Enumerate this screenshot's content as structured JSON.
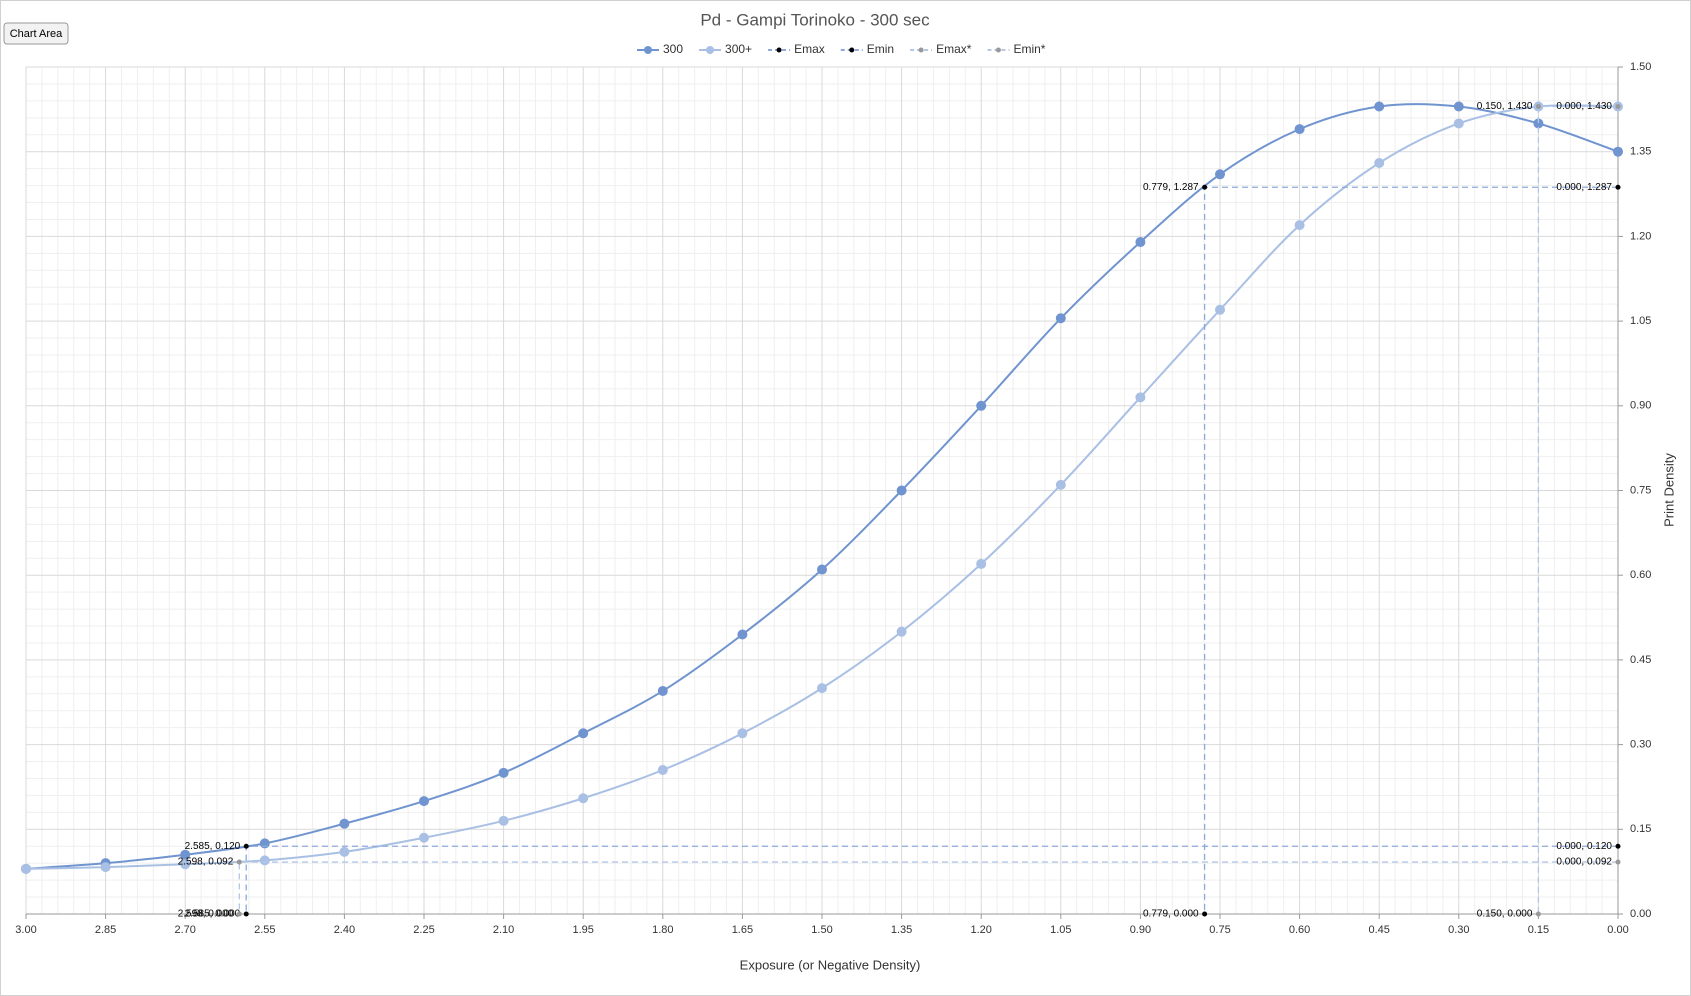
{
  "tooltip": "Chart Area",
  "chart_data": {
    "type": "line",
    "title": "Pd - Gampi Torinoko - 300 sec",
    "x_label": "Exposure (or Negative Density)",
    "y_label": "Print Density",
    "xlim": [
      3,
      0
    ],
    "ylim": [
      0,
      1.5
    ],
    "xticks": [
      {
        "value": 3,
        "label": "3.00"
      },
      2.85,
      {
        "value": 2.7,
        "label": "2.70"
      },
      2.55,
      {
        "value": 2.4,
        "label": "2.40"
      },
      2.25,
      {
        "value": 2.1,
        "label": "2.10"
      },
      1.95,
      {
        "value": 1.8,
        "label": "1.80"
      },
      1.65,
      {
        "value": 1.5,
        "label": "1.50"
      },
      1.35,
      {
        "value": 1.2,
        "label": "1.20"
      },
      1.05,
      {
        "value": 0.9,
        "label": "0.90"
      },
      0.75,
      {
        "value": 0.6,
        "label": "0.60"
      },
      0.45,
      {
        "value": 0.3,
        "label": "0.30"
      },
      0.15,
      {
        "value": 0,
        "label": "0.00"
      }
    ],
    "yticks": [
      {
        "value": 0,
        "label": "0.00"
      },
      0.15,
      {
        "value": 0.3,
        "label": "0.30"
      },
      0.45,
      {
        "value": 0.6,
        "label": "0.60"
      },
      0.75,
      {
        "value": 0.9,
        "label": "0.90"
      },
      1.05,
      {
        "value": 1.2,
        "label": "1.20"
      },
      1.35,
      {
        "value": 1.5,
        "label": "1.50"
      }
    ],
    "grid": true,
    "minor_grid": true,
    "legend": "top",
    "series": [
      {
        "name": "300",
        "color": "#7094cf",
        "smooth": true,
        "dashed": false,
        "marker_color": "#7094cf",
        "x": [
          3,
          2.85,
          2.7,
          2.55,
          2.4,
          2.25,
          2.1,
          1.95,
          1.8,
          1.65,
          1.5,
          1.35,
          1.2,
          1.05,
          0.9,
          0.75,
          0.6,
          0.45,
          0.3,
          0.15,
          0
        ],
        "values": [
          0.08,
          0.09,
          0.105,
          0.125,
          0.16,
          0.2,
          0.25,
          0.32,
          0.395,
          0.495,
          0.61,
          0.75,
          0.9,
          1.055,
          1.19,
          1.31,
          1.39,
          1.43,
          1.43,
          1.4,
          1.35
        ]
      },
      {
        "name": "300+",
        "color": "#a9c0e4",
        "smooth": true,
        "dashed": false,
        "marker_color": "#a9c0e4",
        "x": [
          3,
          2.85,
          2.7,
          2.55,
          2.4,
          2.25,
          2.1,
          1.95,
          1.8,
          1.65,
          1.5,
          1.35,
          1.2,
          1.05,
          0.9,
          0.75,
          0.6,
          0.45,
          0.3,
          0.15,
          0
        ],
        "values": [
          0.08,
          0.083,
          0.088,
          0.095,
          0.11,
          0.135,
          0.165,
          0.205,
          0.255,
          0.32,
          0.4,
          0.5,
          0.62,
          0.76,
          0.915,
          1.07,
          1.22,
          1.33,
          1.4,
          1.43,
          1.43
        ]
      },
      {
        "name": "Emax",
        "color": "#8eaadb",
        "smooth": false,
        "dashed": true,
        "marker_color": "#000000",
        "x": [
          0,
          0.779,
          0.779
        ],
        "values": [
          1.287,
          1.287,
          0
        ],
        "value_labels": [
          "0.000, 1.287",
          "0.779, 1.287",
          "0.779, 0.000"
        ]
      },
      {
        "name": "Emin",
        "color": "#8eaadb",
        "smooth": false,
        "dashed": true,
        "marker_color": "#000000",
        "x": [
          0,
          2.585,
          2.585
        ],
        "values": [
          0.12,
          0.12,
          0
        ],
        "value_labels": [
          "0.000, 0.120",
          "2.585, 0.120",
          "2.585, 0.000"
        ]
      },
      {
        "name": "Emax*",
        "color": "#b4c7e7",
        "smooth": false,
        "dashed": true,
        "marker_color": "#999999",
        "x": [
          0,
          0.15,
          0.15
        ],
        "values": [
          1.43,
          1.43,
          0
        ],
        "value_labels": [
          "0.000, 1.430",
          "0.150, 1.430",
          "0.150, 0.000"
        ]
      },
      {
        "name": "Emin*",
        "color": "#b4c7e7",
        "smooth": false,
        "dashed": true,
        "marker_color": "#999999",
        "x": [
          0,
          2.598,
          2.598
        ],
        "values": [
          0.092,
          0.092,
          0
        ],
        "value_labels": [
          "0.000, 0.092",
          "2.598, 0.092",
          "2.598, 0.000"
        ]
      }
    ]
  }
}
